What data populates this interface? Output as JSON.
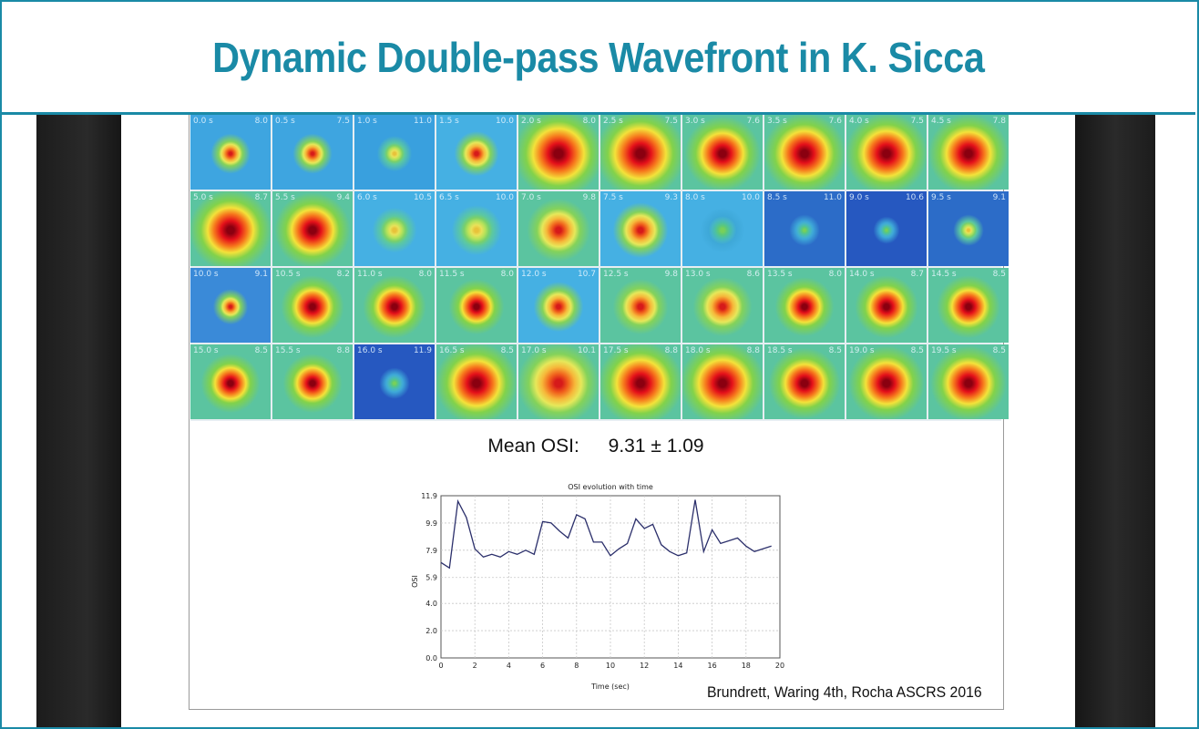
{
  "title": "Dynamic Double-pass Wavefront in K. Sicca",
  "mean_osi": {
    "label": "Mean OSI:",
    "value": "9.31 ± 1.09"
  },
  "citation": "Brundrett, Waring 4th, Rocha ASCRS 2016",
  "colors": {
    "accent": "#1a8aa6",
    "plot_line": "#2b2f6b",
    "grid_line": "#c8c8c8"
  },
  "tiles": [
    {
      "time": "0.0 s",
      "osi": "8.0",
      "bg": "#3ea5e0",
      "spot": 0.55,
      "core": "orange"
    },
    {
      "time": "0.5 s",
      "osi": "7.5",
      "bg": "#3ea5e0",
      "spot": 0.55,
      "core": "orange"
    },
    {
      "time": "1.0 s",
      "osi": "11.0",
      "bg": "#39a0de",
      "spot": 0.5,
      "core": "yellow"
    },
    {
      "time": "1.5 s",
      "osi": "10.0",
      "bg": "#45b0e3",
      "spot": 0.6,
      "core": "orange"
    },
    {
      "time": "2.0 s",
      "osi": "8.0",
      "bg": "#5bc4a0",
      "spot": 0.95,
      "core": "red"
    },
    {
      "time": "2.5 s",
      "osi": "7.5",
      "bg": "#5bc4a0",
      "spot": 0.95,
      "core": "red"
    },
    {
      "time": "3.0 s",
      "osi": "7.6",
      "bg": "#5bc4a0",
      "spot": 0.85,
      "core": "red"
    },
    {
      "time": "3.5 s",
      "osi": "7.6",
      "bg": "#5bc4a0",
      "spot": 0.9,
      "core": "red"
    },
    {
      "time": "4.0 s",
      "osi": "7.5",
      "bg": "#5bc4a0",
      "spot": 0.9,
      "core": "red"
    },
    {
      "time": "4.5 s",
      "osi": "7.8",
      "bg": "#5bc4a0",
      "spot": 0.88,
      "core": "red"
    },
    {
      "time": "5.0 s",
      "osi": "8.7",
      "bg": "#5bc4a0",
      "spot": 0.9,
      "core": "red"
    },
    {
      "time": "5.5 s",
      "osi": "9.4",
      "bg": "#5bc4a0",
      "spot": 0.85,
      "core": "red"
    },
    {
      "time": "6.0 s",
      "osi": "10.5",
      "bg": "#45b0e3",
      "spot": 0.6,
      "core": "yellow"
    },
    {
      "time": "6.5 s",
      "osi": "10.0",
      "bg": "#45b0e3",
      "spot": 0.65,
      "core": "yellow"
    },
    {
      "time": "7.0 s",
      "osi": "9.8",
      "bg": "#5bc4a0",
      "spot": 0.75,
      "core": "orange"
    },
    {
      "time": "7.5 s",
      "osi": "9.3",
      "bg": "#45b0e3",
      "spot": 0.7,
      "core": "orange"
    },
    {
      "time": "8.0 s",
      "osi": "10.0",
      "bg": "#45b0e3",
      "spot": 0.6,
      "core": "green"
    },
    {
      "time": "8.5 s",
      "osi": "11.0",
      "bg": "#2c6cc8",
      "spot": 0.45,
      "core": "green"
    },
    {
      "time": "9.0 s",
      "osi": "10.6",
      "bg": "#2658c0",
      "spot": 0.4,
      "core": "green"
    },
    {
      "time": "9.5 s",
      "osi": "9.1",
      "bg": "#2c6cc8",
      "spot": 0.45,
      "core": "yellow"
    },
    {
      "time": "10.0 s",
      "osi": "9.1",
      "bg": "#3a8ad8",
      "spot": 0.5,
      "core": "orange"
    },
    {
      "time": "10.5 s",
      "osi": "8.2",
      "bg": "#5bc4a0",
      "spot": 0.75,
      "core": "red"
    },
    {
      "time": "11.0 s",
      "osi": "8.0",
      "bg": "#5bc4a0",
      "spot": 0.75,
      "core": "red"
    },
    {
      "time": "11.5 s",
      "osi": "8.0",
      "bg": "#5bc4a0",
      "spot": 0.7,
      "core": "red"
    },
    {
      "time": "12.0 s",
      "osi": "10.7",
      "bg": "#45b0e3",
      "spot": 0.65,
      "core": "orange"
    },
    {
      "time": "12.5 s",
      "osi": "9.8",
      "bg": "#5bc4a0",
      "spot": 0.7,
      "core": "orange"
    },
    {
      "time": "13.0 s",
      "osi": "8.6",
      "bg": "#5bc4a0",
      "spot": 0.72,
      "core": "orange"
    },
    {
      "time": "13.5 s",
      "osi": "8.0",
      "bg": "#5bc4a0",
      "spot": 0.72,
      "core": "red"
    },
    {
      "time": "14.0 s",
      "osi": "8.7",
      "bg": "#5bc4a0",
      "spot": 0.75,
      "core": "red"
    },
    {
      "time": "14.5 s",
      "osi": "8.5",
      "bg": "#5bc4a0",
      "spot": 0.75,
      "core": "red"
    },
    {
      "time": "15.0 s",
      "osi": "8.5",
      "bg": "#5bc4a0",
      "spot": 0.72,
      "core": "red"
    },
    {
      "time": "15.5 s",
      "osi": "8.8",
      "bg": "#5bc4a0",
      "spot": 0.72,
      "core": "red"
    },
    {
      "time": "16.0 s",
      "osi": "11.9",
      "bg": "#2658c0",
      "spot": 0.45,
      "core": "green"
    },
    {
      "time": "16.5 s",
      "osi": "8.5",
      "bg": "#5bc4a0",
      "spot": 0.9,
      "core": "red"
    },
    {
      "time": "17.0 s",
      "osi": "10.1",
      "bg": "#5bc4a0",
      "spot": 0.9,
      "core": "orange"
    },
    {
      "time": "17.5 s",
      "osi": "8.8",
      "bg": "#5bc4a0",
      "spot": 0.92,
      "core": "red"
    },
    {
      "time": "18.0 s",
      "osi": "8.8",
      "bg": "#5bc4a0",
      "spot": 0.92,
      "core": "red"
    },
    {
      "time": "18.5 s",
      "osi": "8.5",
      "bg": "#5bc4a0",
      "spot": 0.82,
      "core": "red"
    },
    {
      "time": "19.0 s",
      "osi": "8.5",
      "bg": "#5bc4a0",
      "spot": 0.85,
      "core": "red"
    },
    {
      "time": "19.5 s",
      "osi": "8.5",
      "bg": "#5bc4a0",
      "spot": 0.85,
      "core": "red"
    }
  ],
  "chart_data": {
    "type": "line",
    "title": "OSI evolution with time",
    "xlabel": "Time (sec)",
    "ylabel": "OSI",
    "xlim": [
      0,
      20
    ],
    "ylim": [
      0.0,
      11.9
    ],
    "xticks": [
      "0",
      "2",
      "4",
      "6",
      "8",
      "10",
      "12",
      "14",
      "16",
      "18",
      "20"
    ],
    "yticks": [
      "0.0",
      "2.0",
      "4.0",
      "5.9",
      "7.9",
      "9.9",
      "11.9"
    ],
    "grid": true,
    "series": [
      {
        "x": [
          0,
          0.5,
          1.0,
          1.5,
          2.0,
          2.5,
          3.0,
          3.5,
          4.0,
          4.5,
          5.0,
          5.5,
          6.0,
          6.5,
          7.0,
          7.5,
          8.0,
          8.5,
          9.0,
          9.5,
          10.0,
          10.5,
          11.0,
          11.5,
          12.0,
          12.5,
          13.0,
          13.5,
          14.0,
          14.5,
          15.0,
          15.5,
          16.0,
          16.5,
          17.0,
          17.5,
          18.0,
          18.5,
          19.0,
          19.5
        ],
        "y": [
          7.0,
          6.6,
          11.5,
          10.3,
          8.0,
          7.4,
          7.6,
          7.4,
          7.8,
          7.6,
          7.9,
          7.6,
          10.0,
          9.9,
          9.3,
          8.8,
          10.5,
          10.2,
          8.5,
          8.5,
          7.5,
          8.0,
          8.4,
          10.2,
          9.5,
          9.8,
          8.3,
          7.8,
          7.5,
          7.7,
          11.6,
          7.8,
          9.4,
          8.4,
          8.6,
          8.8,
          8.2,
          7.8,
          8.0,
          8.2
        ]
      }
    ]
  }
}
